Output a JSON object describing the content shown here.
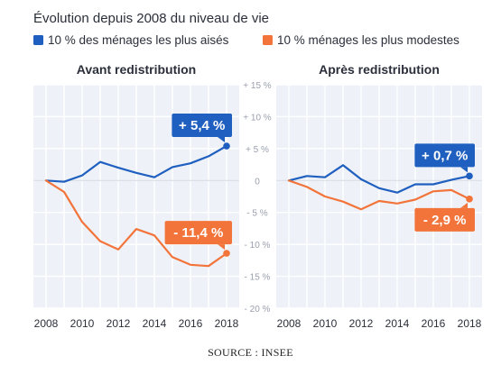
{
  "figure": {
    "title": "Évolution depuis 2008 du niveau de vie",
    "source": "SOURCE : INSEE"
  },
  "colors": {
    "rich": "#1f5fbf",
    "poor": "#f2743a",
    "panel_bg": "#eef2f8",
    "grid": "#ffffff",
    "title_text": "#2b2f3a",
    "tick_text": "#9aa0ad"
  },
  "chart_data": [
    {
      "type": "line",
      "title": "Avant redistribution",
      "x": [
        2008,
        2009,
        2010,
        2011,
        2012,
        2013,
        2014,
        2015,
        2016,
        2017,
        2018
      ],
      "series": [
        {
          "name": "10 % des ménages les plus aisés",
          "color": "#1f5fbf",
          "values": [
            0,
            -0.2,
            0.8,
            2.9,
            2.0,
            1.2,
            0.5,
            2.1,
            2.7,
            3.8,
            5.4
          ],
          "end_label": "+ 5,4 %"
        },
        {
          "name": "10 % ménages les plus modestes",
          "color": "#f2743a",
          "values": [
            0,
            -1.8,
            -6.5,
            -9.5,
            -10.8,
            -7.6,
            -8.6,
            -12.0,
            -13.2,
            -13.4,
            -11.4
          ],
          "end_label": "- 11,4 %"
        }
      ],
      "xlim": [
        2007.3,
        2018.7
      ],
      "ylim": [
        -20,
        15
      ],
      "xticks": [
        2008,
        2010,
        2012,
        2014,
        2016,
        2018
      ],
      "yticks": [
        15,
        10,
        5,
        0,
        -5,
        -10,
        -15,
        -20
      ],
      "ytick_labels": [
        "+ 15 %",
        "+ 10 %",
        "+ 5 %",
        "0",
        "- 5 %",
        "- 10 %",
        "- 15 %",
        "- 20 %"
      ],
      "grid": true
    },
    {
      "type": "line",
      "title": "Après redistribution",
      "x": [
        2008,
        2009,
        2010,
        2011,
        2012,
        2013,
        2014,
        2015,
        2016,
        2017,
        2018
      ],
      "series": [
        {
          "name": "10 % des ménages les plus aisés",
          "color": "#1f5fbf",
          "values": [
            0,
            0.7,
            0.5,
            2.4,
            0.2,
            -1.2,
            -1.9,
            -0.6,
            -0.6,
            0.1,
            0.7
          ],
          "end_label": "+ 0,7 %"
        },
        {
          "name": "10 % ménages les plus modestes",
          "color": "#f2743a",
          "values": [
            0,
            -1.0,
            -2.5,
            -3.3,
            -4.5,
            -3.2,
            -3.6,
            -3.0,
            -1.7,
            -1.5,
            -2.9
          ],
          "end_label": "- 2,9 %"
        }
      ],
      "xlim": [
        2007.3,
        2018.7
      ],
      "ylim": [
        -20,
        15
      ],
      "xticks": [
        2008,
        2010,
        2012,
        2014,
        2016,
        2018
      ],
      "grid": true
    }
  ],
  "legend": [
    {
      "label": "10 % des ménages les plus aisés",
      "color": "#1f5fbf"
    },
    {
      "label": "10 % ménages les plus modestes",
      "color": "#f2743a"
    }
  ]
}
